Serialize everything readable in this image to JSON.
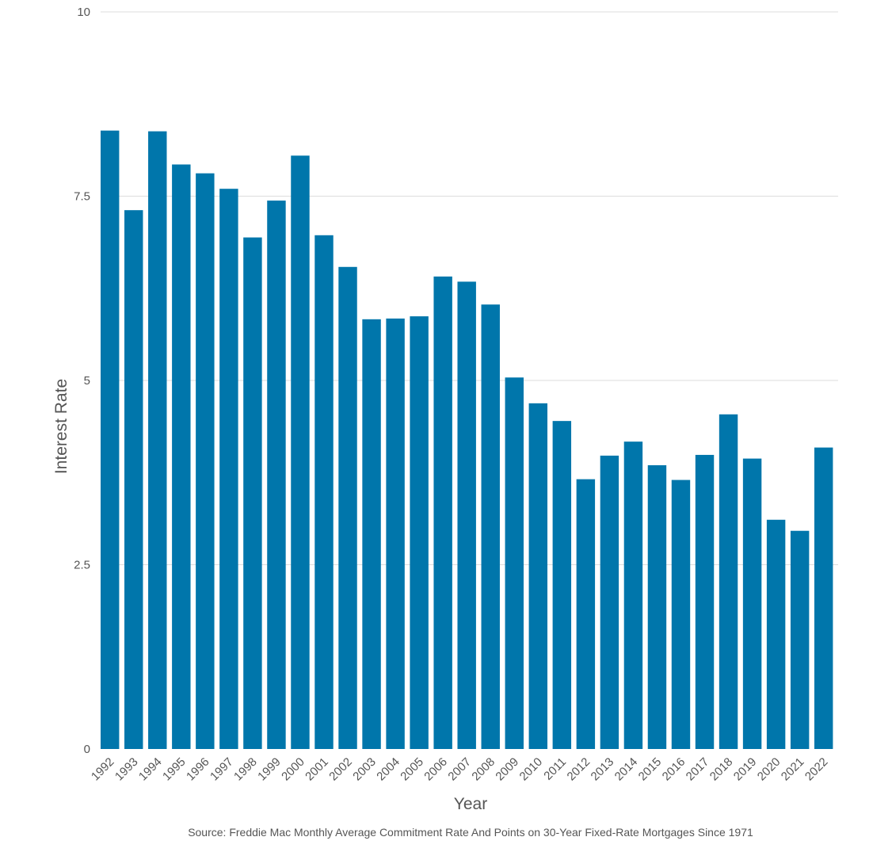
{
  "chart_data": {
    "type": "bar",
    "title": "",
    "xlabel": "Year",
    "ylabel": "Interest Rate",
    "ylim": [
      0,
      10
    ],
    "yticks": [
      0,
      2.5,
      5,
      7.5,
      10
    ],
    "ytick_labels": [
      "0",
      "2.5",
      "5",
      "7.5",
      "10"
    ],
    "grid": true,
    "bar_color": "#0076ab",
    "categories": [
      "1992",
      "1993",
      "1994",
      "1995",
      "1996",
      "1997",
      "1998",
      "1999",
      "2000",
      "2001",
      "2002",
      "2003",
      "2004",
      "2005",
      "2006",
      "2007",
      "2008",
      "2009",
      "2010",
      "2011",
      "2012",
      "2013",
      "2014",
      "2015",
      "2016",
      "2017",
      "2018",
      "2019",
      "2020",
      "2021",
      "2022"
    ],
    "values": [
      8.39,
      7.31,
      8.38,
      7.93,
      7.81,
      7.6,
      6.94,
      7.44,
      8.05,
      6.97,
      6.54,
      5.83,
      5.84,
      5.87,
      6.41,
      6.34,
      6.03,
      5.04,
      4.69,
      4.45,
      3.66,
      3.98,
      4.17,
      3.85,
      3.65,
      3.99,
      4.54,
      3.94,
      3.11,
      2.96,
      4.09
    ],
    "source": "Source: Freddie Mac Monthly Average Commitment Rate And Points on 30-Year Fixed-Rate Mortgages Since 1971"
  }
}
